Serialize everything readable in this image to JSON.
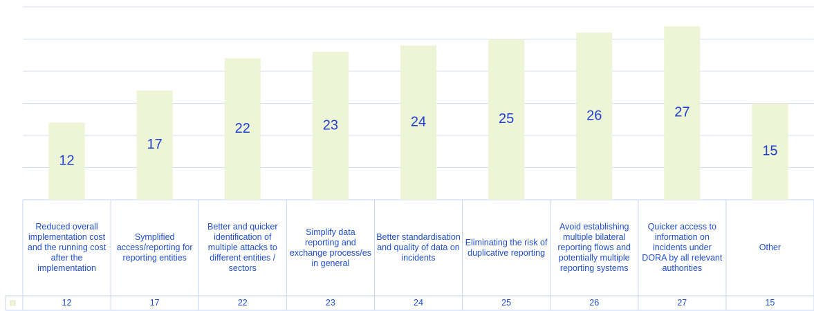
{
  "chart_data": {
    "type": "bar",
    "categories": [
      "Reduced overall implementation cost and the running cost after the implementation",
      "Symplified access/reporting for reporting entities",
      "Better and quicker identification of multiple attacks to different entities / sectors",
      "Simplify data reporting and exchange process/es in general",
      "Better standardisation and quality of data on incidents",
      "Eliminating the risk of duplicative reporting",
      "Avoid establishing multiple bilateral reporting flows and potentially multiple reporting systems",
      "Quicker access to information on incidents under DORA by all relevant authorities",
      "Other"
    ],
    "values": [
      12,
      17,
      22,
      23,
      24,
      25,
      26,
      27,
      15
    ],
    "color": "#eef4d6",
    "ylim": [
      0,
      30
    ],
    "yticks": [
      0,
      5,
      10,
      15,
      20,
      25,
      30
    ],
    "grid": true
  }
}
